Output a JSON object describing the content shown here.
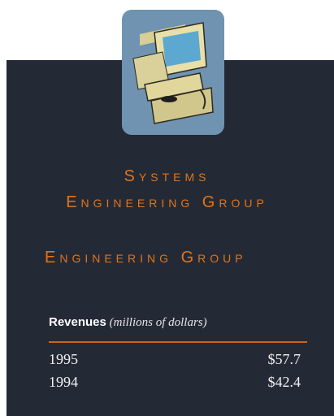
{
  "header": {
    "title_line1": "Systems",
    "title_line2": "Engineering Group",
    "ghost_line": "Engineering Group"
  },
  "table": {
    "label": "Revenues",
    "unit": "(millions of dollars)",
    "rows": [
      [
        "1995",
        "$57.7"
      ],
      [
        "1994",
        "$42.4"
      ]
    ]
  }
}
